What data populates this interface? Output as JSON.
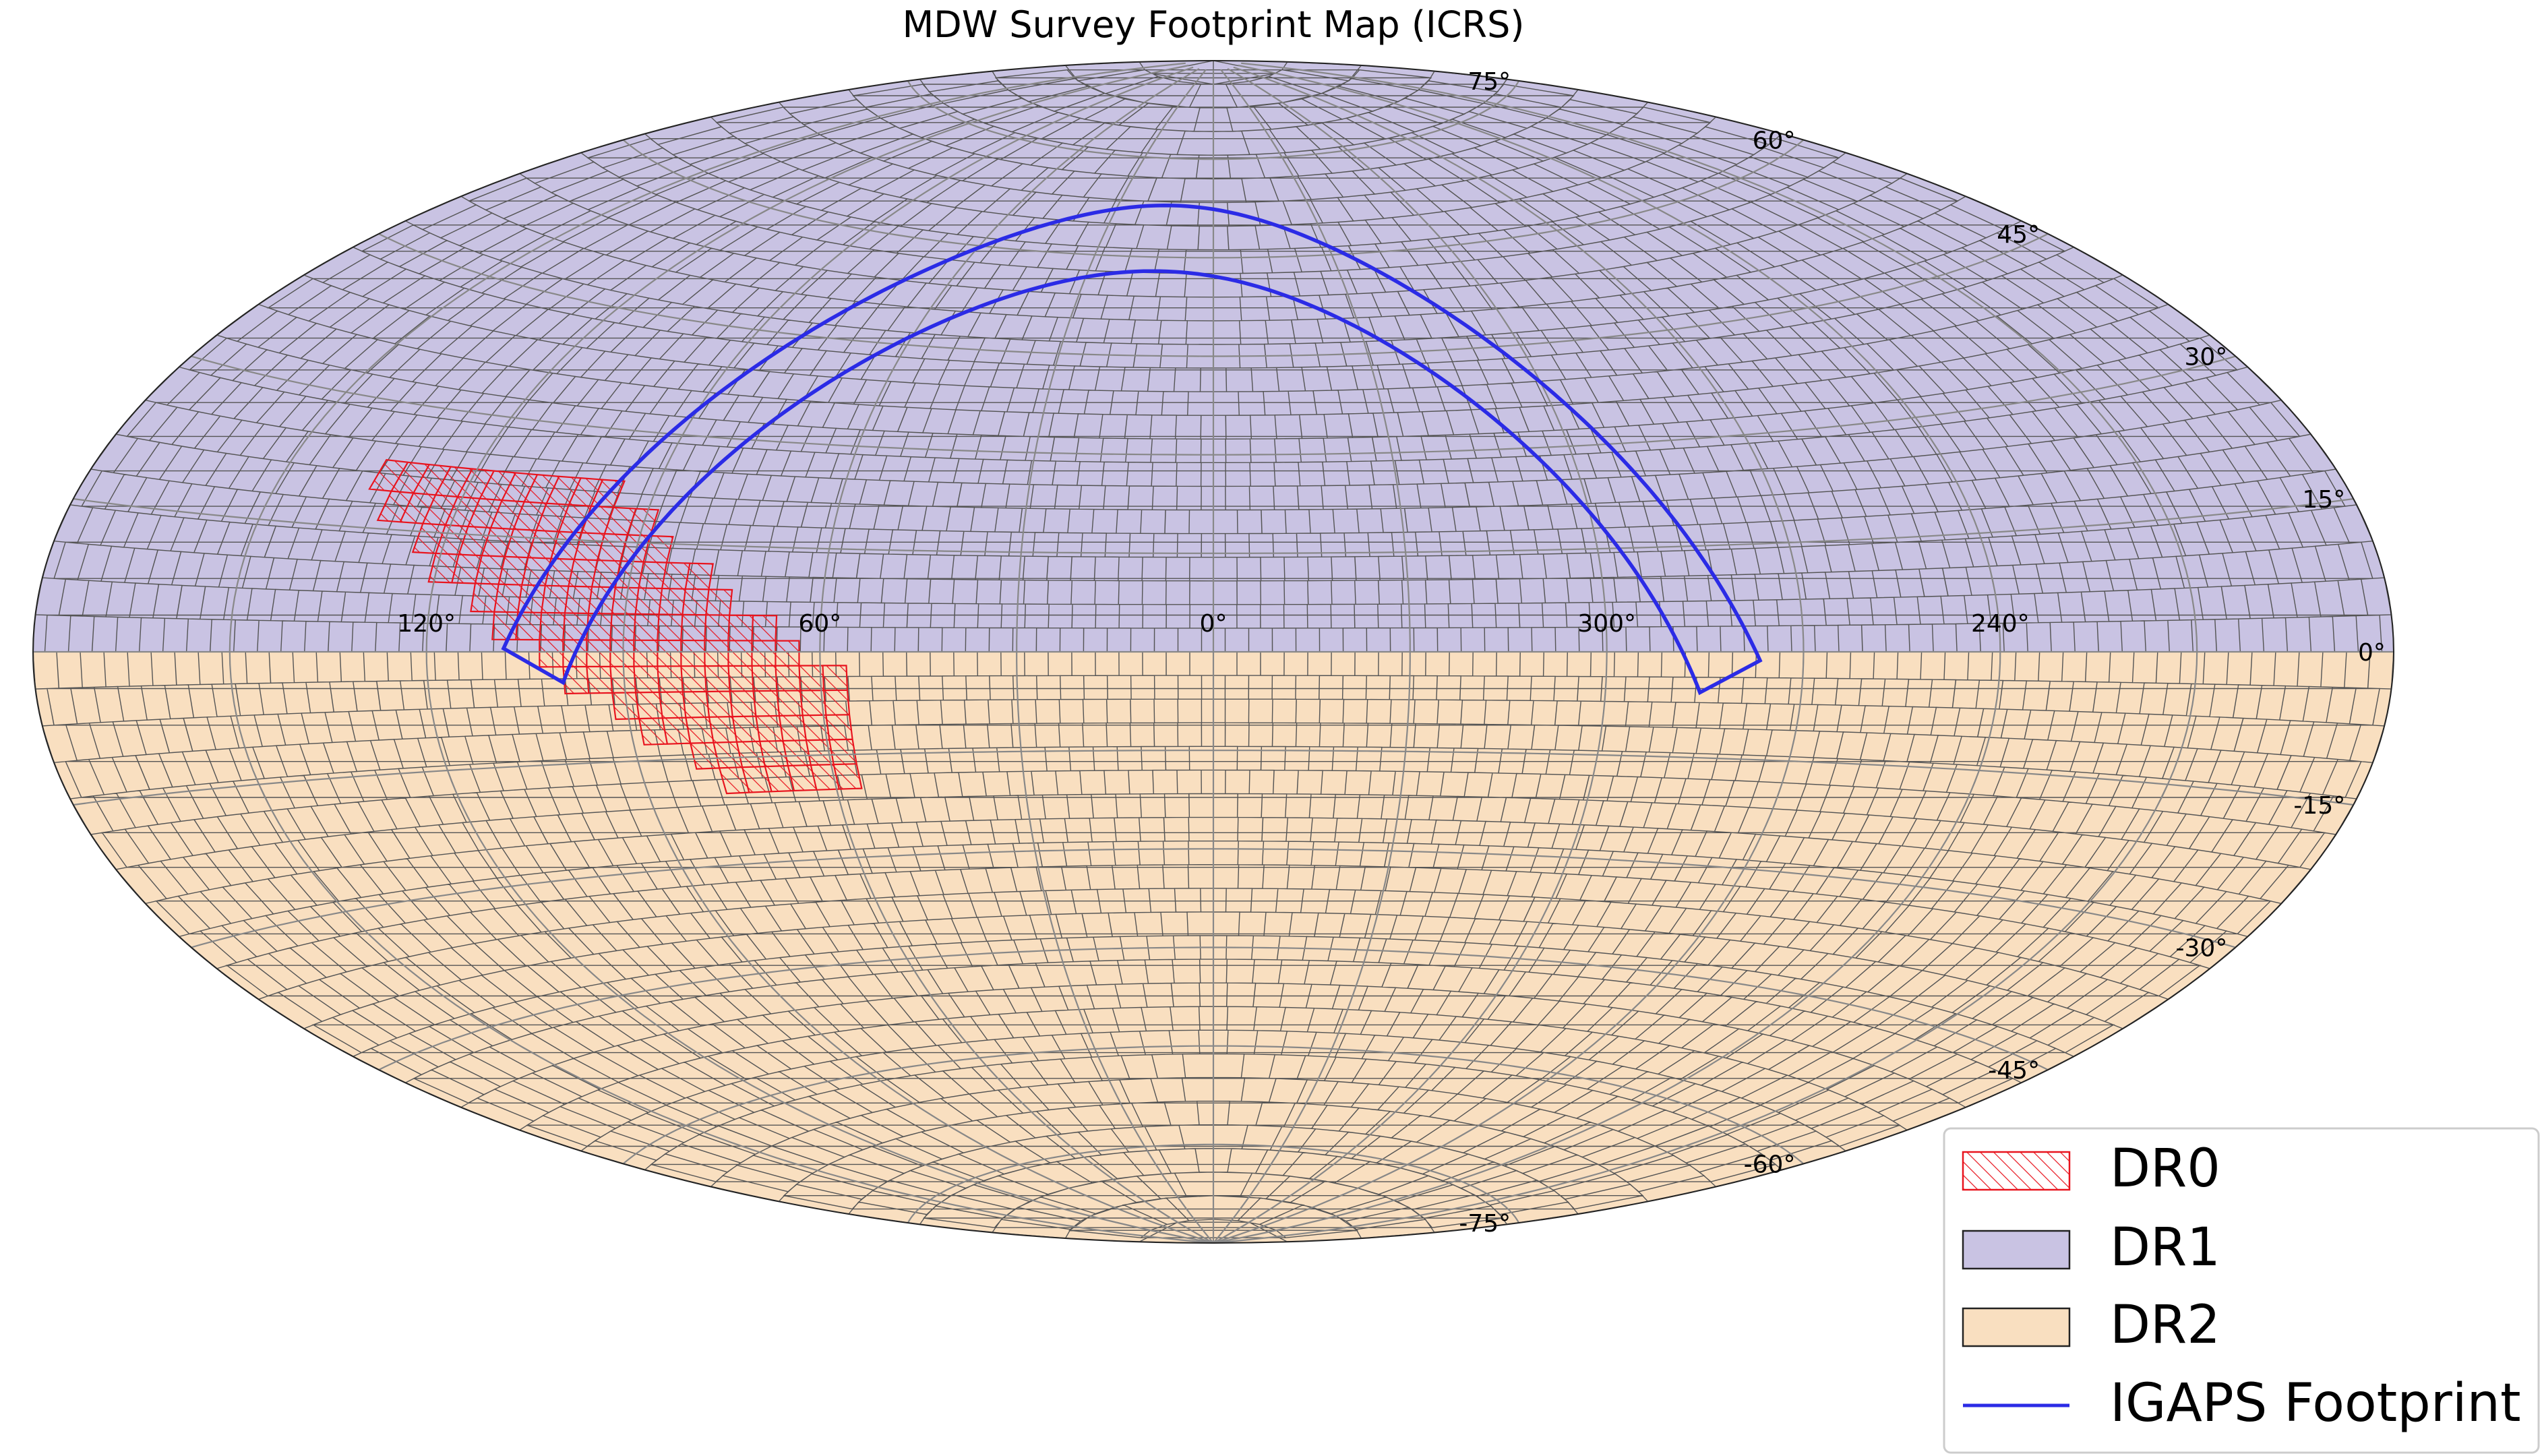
{
  "chart_data": {
    "type": "map",
    "projection": "aitoff",
    "title": "MDW Survey Footprint Map (ICRS)",
    "ra_tick_labels": [
      "120°",
      "60°",
      "0°",
      "300°",
      "240°"
    ],
    "ra_ticks": [
      120,
      60,
      0,
      300,
      240
    ],
    "dec_tick_labels": [
      "75°",
      "60°",
      "45°",
      "30°",
      "15°",
      "0°",
      "-15°",
      "-30°",
      "-45°",
      "-60°",
      "-75°"
    ],
    "dec_ticks": [
      75,
      60,
      45,
      30,
      15,
      0,
      -15,
      -30,
      -45,
      -60,
      -75
    ],
    "grid": true,
    "legend_position": "bottom-right",
    "series": [
      {
        "name": "DR0",
        "kind": "hatched-region",
        "color": "#e8141e",
        "description_range": {
          "ra_min": 60,
          "ra_max": 135,
          "dec_min": -20,
          "dec_max": 23
        }
      },
      {
        "name": "DR1",
        "kind": "region",
        "color": "#c9c3e3",
        "dec_min": 0,
        "dec_max": 90
      },
      {
        "name": "DR2",
        "kind": "region",
        "color": "#f9dfc0",
        "dec_min": -90,
        "dec_max": 0
      },
      {
        "name": "IGAPS Footprint",
        "kind": "line",
        "color": "#2b2be6",
        "galactic_band": {
          "b_min": -5,
          "b_max": 5,
          "l_min": 29,
          "l_max": 215
        }
      }
    ]
  },
  "legend": {
    "items": [
      {
        "label": "DR0"
      },
      {
        "label": "DR1"
      },
      {
        "label": "DR2"
      },
      {
        "label": "IGAPS Footprint"
      }
    ]
  },
  "colors": {
    "dr0": "#e8141e",
    "dr1": "#c9c3e3",
    "dr2": "#f9dfc0",
    "igaps": "#2b2be6",
    "tile_edge": "#555555",
    "grid": "#888888"
  }
}
